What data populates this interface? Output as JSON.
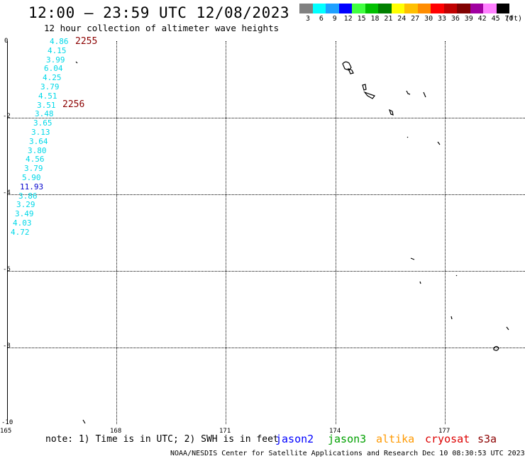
{
  "title": "12:00 – 23:59 UTC 12/08/2023",
  "subtitle": "12 hour collection of altimeter wave heights",
  "legend": {
    "colors": [
      "#808080",
      "#00ffff",
      "#1ea0ff",
      "#0000ff",
      "#40ff40",
      "#00c000",
      "#008000",
      "#ffff00",
      "#ffc000",
      "#ff8c00",
      "#ff0000",
      "#c00000",
      "#800000",
      "#a000a0",
      "#ff80ff",
      "#000000"
    ],
    "labels": [
      "3",
      "6",
      "9",
      "12",
      "15",
      "18",
      "21",
      "24",
      "27",
      "30",
      "33",
      "36",
      "39",
      "42",
      "45",
      "70"
    ],
    "unit": "(ft)"
  },
  "y_axis_labels": [
    "0",
    "-2",
    "-4",
    "-6",
    "-8",
    "-10"
  ],
  "x_axis_labels": [
    "165",
    "168",
    "171",
    "174",
    "177"
  ],
  "wave_heights": [
    {
      "value": "4.86",
      "color": "#00d8e8"
    },
    {
      "value": "4.15",
      "color": "#00d8e8"
    },
    {
      "value": "3.99",
      "color": "#00d8e8"
    },
    {
      "value": "6.04",
      "color": "#00d8e8"
    },
    {
      "value": "4.25",
      "color": "#00d8e8"
    },
    {
      "value": "3.79",
      "color": "#00d8e8"
    },
    {
      "value": "4.51",
      "color": "#00d8e8"
    },
    {
      "value": "3.51",
      "color": "#00d8e8"
    },
    {
      "value": "3.48",
      "color": "#00d8e8"
    },
    {
      "value": "3.65",
      "color": "#00d8e8"
    },
    {
      "value": "3.13",
      "color": "#00d8e8"
    },
    {
      "value": "3.64",
      "color": "#00d8e8"
    },
    {
      "value": "3.80",
      "color": "#00d8e8"
    },
    {
      "value": "4.56",
      "color": "#00d8e8"
    },
    {
      "value": "3.79",
      "color": "#00d8e8"
    },
    {
      "value": "5.90",
      "color": "#00d8e8"
    },
    {
      "value": "11.93",
      "color": "#0000cc"
    },
    {
      "value": "3.86",
      "color": "#00d8e8"
    },
    {
      "value": "3.29",
      "color": "#00d8e8"
    },
    {
      "value": "3.49",
      "color": "#00d8e8"
    },
    {
      "value": "4.03",
      "color": "#00d8e8"
    },
    {
      "value": "4.72",
      "color": "#00d8e8"
    }
  ],
  "time_labels": [
    "2255",
    "2256"
  ],
  "note": "note: 1) Time is in UTC; 2) SWH is in feet",
  "satellites": [
    {
      "name": "jason2",
      "color": "#0000ff"
    },
    {
      "name": "jason3",
      "color": "#00a000"
    },
    {
      "name": "altika",
      "color": "#ff9900"
    },
    {
      "name": "cryosat",
      "color": "#dd0000"
    },
    {
      "name": "s3a",
      "color": "#8b0000"
    }
  ],
  "footer": "NOAA/NESDIS Center for Satellite Applications and Research   Dec 10 08:30:53 UTC 2023"
}
